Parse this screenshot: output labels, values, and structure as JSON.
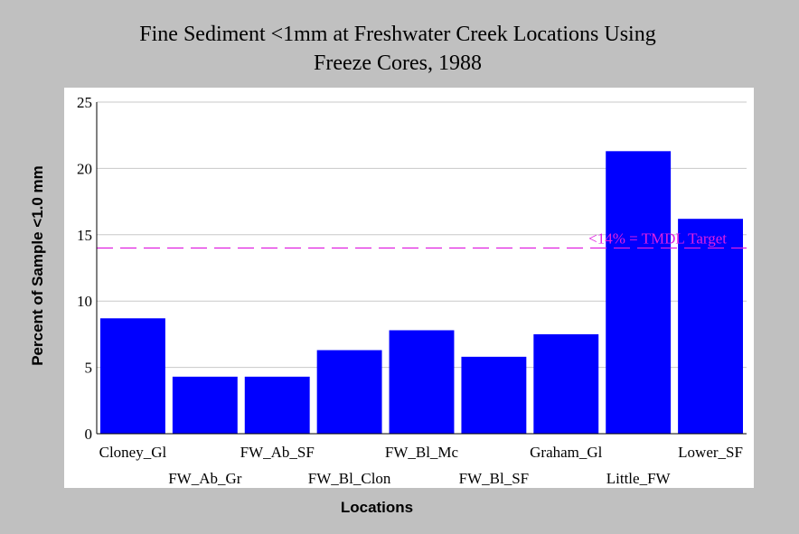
{
  "chart_data": {
    "type": "bar",
    "title": "Fine Sediment <1mm at Freshwater Creek Locations Using",
    "subtitle": "Freeze Cores, 1988",
    "xlabel": "Locations",
    "ylabel": "Percent of Sample <1.0 mm",
    "ylim": [
      0,
      25
    ],
    "yticks": [
      "0",
      "5",
      "10",
      "15",
      "20",
      "25"
    ],
    "categories": [
      "Cloney_Gl",
      "FW_Ab_Gr",
      "FW_Ab_SF",
      "FW_Bl_Clon",
      "FW_Bl_Mc",
      "FW_Bl_SF",
      "Graham_Gl",
      "Little_FW",
      "Lower_SF"
    ],
    "values": [
      8.7,
      4.3,
      4.3,
      6.3,
      7.8,
      5.8,
      7.5,
      21.3,
      16.2
    ],
    "bar_color": "#0000ff",
    "grid": true,
    "legend": "none",
    "reference_line": {
      "value": 14,
      "label": "<14% = TMDL Target",
      "color": "#e020e0",
      "style": "dashed"
    }
  }
}
